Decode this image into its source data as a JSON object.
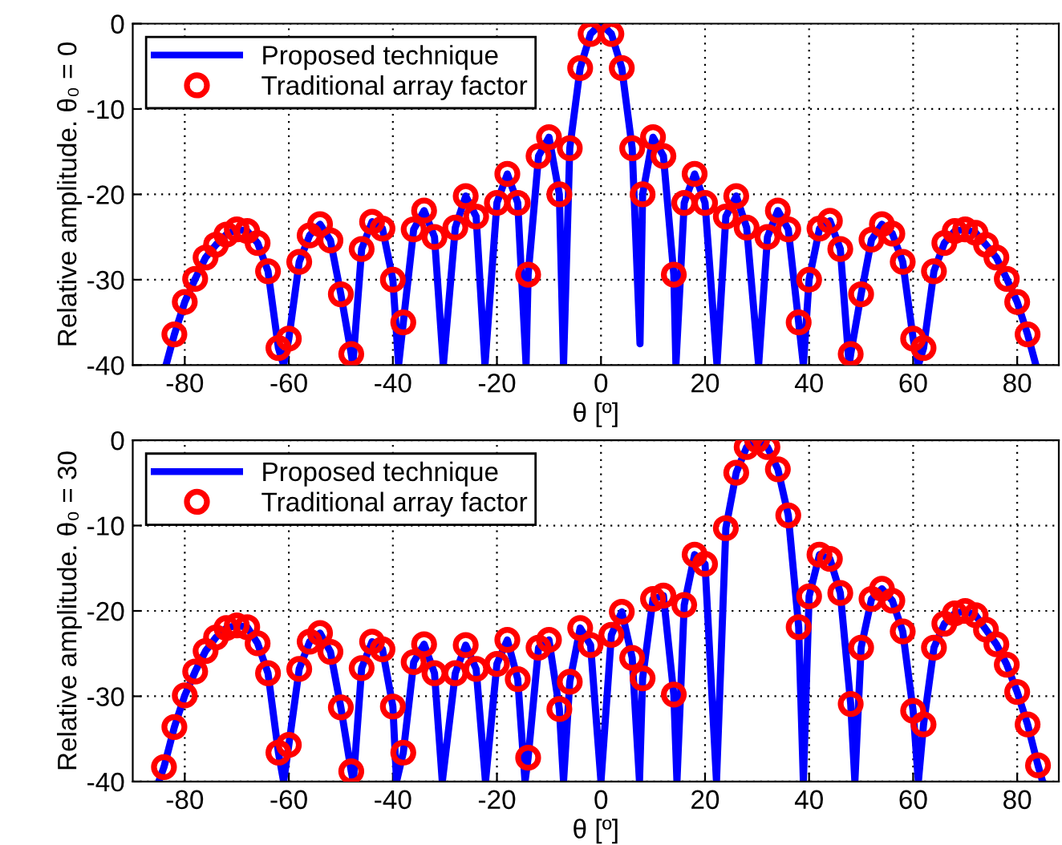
{
  "chart_data": [
    {
      "type": "line",
      "ylabel": "Relative amplitude. θ₀ = 0",
      "xlabel": "θ [º]",
      "xlim": [
        -90,
        88
      ],
      "xticks": [
        -80,
        -60,
        -40,
        -20,
        0,
        20,
        40,
        60,
        80
      ],
      "ylim": [
        -40,
        0
      ],
      "yticks": [
        -40,
        -30,
        -20,
        -10,
        0
      ],
      "grid": true,
      "legend": "top left",
      "series": [
        {
          "type": "line",
          "name": "Proposed technique",
          "color": "#0000ff",
          "marker": "none",
          "line_style": "solid",
          "x": [
            -83.6,
            -82,
            -80,
            -78,
            -76,
            -74,
            -72,
            -70,
            -68,
            -66,
            -64,
            -62,
            -61,
            -60,
            -58,
            -56,
            -54,
            -52,
            -50,
            -48,
            -47.7,
            -46,
            -44,
            -42,
            -40,
            -38.9,
            -38,
            -36,
            -34,
            -32,
            -30.3,
            -28,
            -26,
            -24,
            -22.3,
            -20,
            -18,
            -16,
            -14.4,
            -14,
            -12,
            -10,
            -8,
            -7.2,
            -6,
            -4,
            -2,
            0,
            2,
            4,
            6,
            7.5,
            8,
            10,
            12,
            14,
            14.4,
            16,
            18,
            20,
            22.3,
            24,
            26,
            28,
            30.3,
            32,
            34,
            36,
            38,
            38.9,
            40,
            42,
            44,
            46,
            47.7,
            48,
            50,
            52,
            54,
            56,
            58,
            60,
            61,
            62,
            64,
            66,
            68,
            70,
            72,
            74,
            76,
            78,
            80,
            82,
            83.6
          ],
          "values": [
            -40,
            -36.4,
            -32.6,
            -29.9,
            -27.4,
            -25.9,
            -24.7,
            -24.1,
            -24.3,
            -25.7,
            -29,
            -38,
            -40,
            -36.9,
            -27.9,
            -24.8,
            -23.5,
            -25.4,
            -31.7,
            -38.7,
            -40,
            -26.4,
            -23.2,
            -24,
            -30,
            -40,
            -35,
            -24.1,
            -21.9,
            -25,
            -40,
            -23.9,
            -20.2,
            -22.6,
            -40,
            -21,
            -17.6,
            -21,
            -40,
            -29.4,
            -15.5,
            -13.3,
            -20,
            -40,
            -14.6,
            -5.2,
            -1.2,
            0,
            -1.2,
            -5.2,
            -14.6,
            -37.5,
            -20,
            -13.3,
            -15.5,
            -29.4,
            -40,
            -21,
            -17.6,
            -21,
            -40,
            -22.6,
            -20.2,
            -23.9,
            -40,
            -25,
            -21.9,
            -24.1,
            -35,
            -40,
            -30,
            -24,
            -23.1,
            -26.4,
            -40,
            -38.7,
            -31.7,
            -25.3,
            -23.5,
            -24.6,
            -27.9,
            -36.9,
            -40,
            -38,
            -29,
            -25.7,
            -24.3,
            -24.1,
            -24.5,
            -25.9,
            -27.4,
            -29.9,
            -32.6,
            -36.4,
            -40
          ]
        },
        {
          "type": "scatter",
          "name": "Traditional array factor",
          "color": "#ff0000",
          "marker": "circle",
          "x": [
            -82,
            -80,
            -78,
            -76,
            -74,
            -72,
            -70,
            -68,
            -66,
            -64,
            -62,
            -60,
            -58,
            -56,
            -54,
            -52,
            -50,
            -48,
            -46,
            -44,
            -42,
            -40,
            -38,
            -36,
            -34,
            -32,
            -28,
            -26,
            -24,
            -20,
            -18,
            -16,
            -14,
            -12,
            -10,
            -8,
            -6,
            -4,
            -2,
            2,
            4,
            6,
            8,
            10,
            12,
            14,
            16,
            18,
            20,
            24,
            26,
            28,
            32,
            34,
            36,
            38,
            40,
            42,
            44,
            46,
            48,
            50,
            52,
            54,
            56,
            58,
            60,
            62,
            64,
            66,
            68,
            70,
            72,
            74,
            76,
            78,
            80,
            82
          ],
          "values": [
            -36.4,
            -32.6,
            -29.9,
            -27.4,
            -25.9,
            -24.7,
            -24.1,
            -24.3,
            -25.7,
            -29,
            -38,
            -36.9,
            -27.9,
            -24.8,
            -23.5,
            -25.4,
            -31.7,
            -38.7,
            -26.4,
            -23.2,
            -24,
            -30,
            -35,
            -24.1,
            -21.9,
            -25,
            -23.9,
            -20.2,
            -22.6,
            -21,
            -17.6,
            -21,
            -29.4,
            -15.5,
            -13.3,
            -20,
            -14.6,
            -5.2,
            -1.2,
            -1.2,
            -5.2,
            -14.6,
            -20,
            -13.3,
            -15.5,
            -29.4,
            -21,
            -17.6,
            -21,
            -22.6,
            -20.2,
            -23.9,
            -25,
            -21.9,
            -24.1,
            -35,
            -30,
            -24,
            -23.1,
            -26.4,
            -38.7,
            -31.7,
            -25.3,
            -23.5,
            -24.6,
            -27.9,
            -36.9,
            -38,
            -29,
            -25.7,
            -24.3,
            -24.1,
            -24.5,
            -25.9,
            -27.4,
            -29.9,
            -32.6,
            -36.4
          ]
        }
      ]
    },
    {
      "type": "line",
      "ylabel": "Relative amplitude. θ₀ = 30",
      "xlabel": "θ [º]",
      "xlim": [
        -90,
        88
      ],
      "xticks": [
        -80,
        -60,
        -40,
        -20,
        0,
        20,
        40,
        60,
        80
      ],
      "ylim": [
        -40,
        0
      ],
      "yticks": [
        -40,
        -30,
        -20,
        -10,
        0
      ],
      "grid": true,
      "legend": "top left",
      "series": [
        {
          "type": "line",
          "name": "Proposed technique",
          "color": "#0000ff",
          "marker": "none",
          "line_style": "solid",
          "x": [
            -85,
            -84,
            -82,
            -80,
            -78,
            -76,
            -74,
            -72,
            -70,
            -68,
            -66,
            -64,
            -62,
            -61,
            -60,
            -58,
            -56,
            -54,
            -52,
            -50,
            -48,
            -47.6,
            -46,
            -44,
            -42,
            -40,
            -39.3,
            -38,
            -36,
            -34,
            -32,
            -30.5,
            -28,
            -26,
            -24,
            -22.2,
            -20,
            -18,
            -16,
            -14.6,
            -14,
            -12,
            -10,
            -8,
            -7.2,
            -6,
            -4,
            -2,
            0,
            2,
            4,
            6,
            7.4,
            8,
            10,
            12,
            14,
            14.6,
            16,
            18,
            20,
            22.2,
            24,
            26,
            28,
            30,
            32,
            34,
            36,
            38,
            38.9,
            40,
            42,
            44,
            46,
            48,
            48.8,
            50,
            52,
            54,
            56,
            58,
            60,
            61,
            62,
            64,
            66,
            68,
            70,
            72,
            74,
            76,
            78,
            80,
            82,
            84,
            84.9
          ],
          "values": [
            -40,
            -38.3,
            -33.6,
            -29.9,
            -27.1,
            -24.7,
            -23.1,
            -22,
            -21.7,
            -21.9,
            -23.8,
            -27.3,
            -36.6,
            -40,
            -35.7,
            -26.8,
            -23.6,
            -22.6,
            -24.8,
            -31.3,
            -38.8,
            -40,
            -26.7,
            -23.6,
            -24.5,
            -31.2,
            -40,
            -36.6,
            -26,
            -23.9,
            -27.3,
            -40,
            -27.3,
            -24,
            -26.8,
            -40,
            -26.2,
            -23.4,
            -28,
            -40,
            -37.2,
            -24.3,
            -23.4,
            -31.5,
            -40,
            -28.3,
            -22,
            -24,
            -40,
            -22.8,
            -20.1,
            -25.5,
            -40,
            -27.9,
            -18.6,
            -18.2,
            -29.8,
            -40,
            -19.3,
            -13.4,
            -14.5,
            -40,
            -10.3,
            -3.8,
            -0.8,
            0,
            -0.8,
            -3.4,
            -8.8,
            -21.9,
            -40,
            -18.3,
            -13.4,
            -13.9,
            -17.9,
            -30.9,
            -40,
            -24.3,
            -18.6,
            -17.4,
            -18.8,
            -22.4,
            -31.7,
            -40,
            -33.3,
            -24.3,
            -21.5,
            -20.3,
            -20,
            -20.5,
            -22.2,
            -23.9,
            -26.3,
            -29.5,
            -33.3,
            -38.1,
            -40
          ]
        },
        {
          "type": "scatter",
          "name": "Traditional array factor",
          "color": "#ff0000",
          "marker": "circle",
          "x": [
            -84,
            -82,
            -80,
            -78,
            -76,
            -74,
            -72,
            -70,
            -68,
            -66,
            -64,
            -62,
            -60,
            -58,
            -56,
            -54,
            -52,
            -50,
            -48,
            -46,
            -44,
            -42,
            -40,
            -38,
            -36,
            -34,
            -32,
            -28,
            -26,
            -24,
            -20,
            -18,
            -16,
            -14,
            -12,
            -10,
            -8,
            -6,
            -4,
            -2,
            2,
            4,
            6,
            8,
            10,
            12,
            14,
            16,
            18,
            20,
            24,
            26,
            28,
            30,
            32,
            34,
            36,
            38,
            40,
            42,
            44,
            46,
            48,
            50,
            52,
            54,
            56,
            58,
            60,
            62,
            64,
            66,
            68,
            70,
            72,
            74,
            76,
            78,
            80,
            82,
            84
          ],
          "values": [
            -38.3,
            -33.6,
            -29.9,
            -27.1,
            -24.7,
            -23.1,
            -22,
            -21.7,
            -21.9,
            -23.8,
            -27.3,
            -36.6,
            -35.7,
            -26.8,
            -23.6,
            -22.6,
            -24.8,
            -31.3,
            -38.8,
            -26.7,
            -23.6,
            -24.5,
            -31.2,
            -36.6,
            -26,
            -23.9,
            -27.3,
            -27.3,
            -24,
            -26.8,
            -26.2,
            -23.4,
            -28,
            -37.2,
            -24.3,
            -23.4,
            -31.5,
            -28.3,
            -22,
            -24,
            -22.8,
            -20.1,
            -25.5,
            -27.9,
            -18.6,
            -18.2,
            -29.8,
            -19.3,
            -13.4,
            -14.5,
            -10.3,
            -3.8,
            -0.8,
            0,
            -0.8,
            -3.4,
            -8.8,
            -21.9,
            -18.3,
            -13.4,
            -13.9,
            -17.9,
            -30.9,
            -24.3,
            -18.6,
            -17.4,
            -18.8,
            -22.4,
            -31.7,
            -33.3,
            -24.3,
            -21.5,
            -20.3,
            -20,
            -20.5,
            -22.2,
            -23.9,
            -26.3,
            -29.5,
            -33.3,
            -38.1
          ]
        }
      ]
    }
  ]
}
